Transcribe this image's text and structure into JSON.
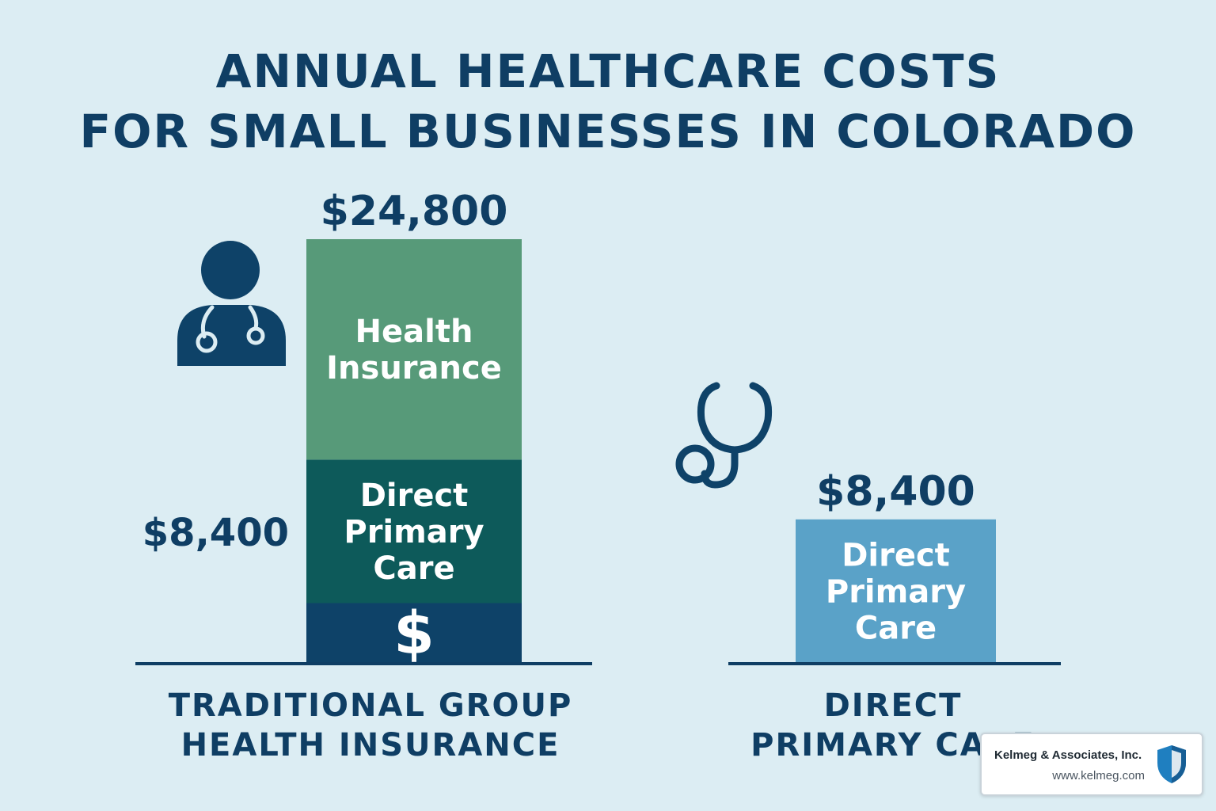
{
  "title_lines": [
    "ANNUAL HEALTHCARE COSTS",
    "FOR SMALL BUSINESSES IN COLORADO"
  ],
  "colors": {
    "background": "#dcedf3",
    "text": "#0f3e64",
    "health_insurance": "#579a79",
    "direct_primary_care_dark": "#0d5a5a",
    "base_navy": "#0e4268",
    "direct_primary_care_light": "#5aa2c8"
  },
  "icons": [
    "doctor-icon",
    "stethoscope-icon",
    "dollar-sign-icon",
    "shield-icon"
  ],
  "chart_data": {
    "type": "bar",
    "stacked": true,
    "title": "ANNUAL HEALTHCARE COSTS FOR SMALL BUSINESSES IN COLORADO",
    "categories": [
      "TRADITIONAL GROUP HEALTH INSURANCE",
      "DIRECT PRIMARY CARE"
    ],
    "category_lines": [
      [
        "TRADITIONAL GROUP",
        "HEALTH INSURANCE"
      ],
      [
        "DIRECT",
        "PRIMARY CARE"
      ]
    ],
    "totals": [
      24800,
      8400
    ],
    "total_labels": [
      "$24,800",
      "$8,400"
    ],
    "bars": [
      {
        "segments": [
          {
            "label": "$",
            "value": 3500,
            "color": "#0e4268"
          },
          {
            "label": "Direct Primary Care",
            "label_lines": [
              "Direct",
              "Primary",
              "Care"
            ],
            "value": 8400,
            "color": "#0d5a5a",
            "side_label": "$8,400"
          },
          {
            "label": "Health Insurance",
            "label_lines": [
              "Health",
              "Insurance"
            ],
            "value": 12900,
            "color": "#579a79"
          }
        ]
      },
      {
        "segments": [
          {
            "label": "Direct Primary Care",
            "label_lines": [
              "Direct",
              "Primary",
              "Care"
            ],
            "value": 8400,
            "color": "#5aa2c8"
          }
        ]
      }
    ],
    "ylim": [
      0,
      24800
    ],
    "grid": false,
    "legend": "none"
  },
  "logo": {
    "name": "Kelmeg & Associates, Inc.",
    "url": "www.kelmeg.com"
  }
}
